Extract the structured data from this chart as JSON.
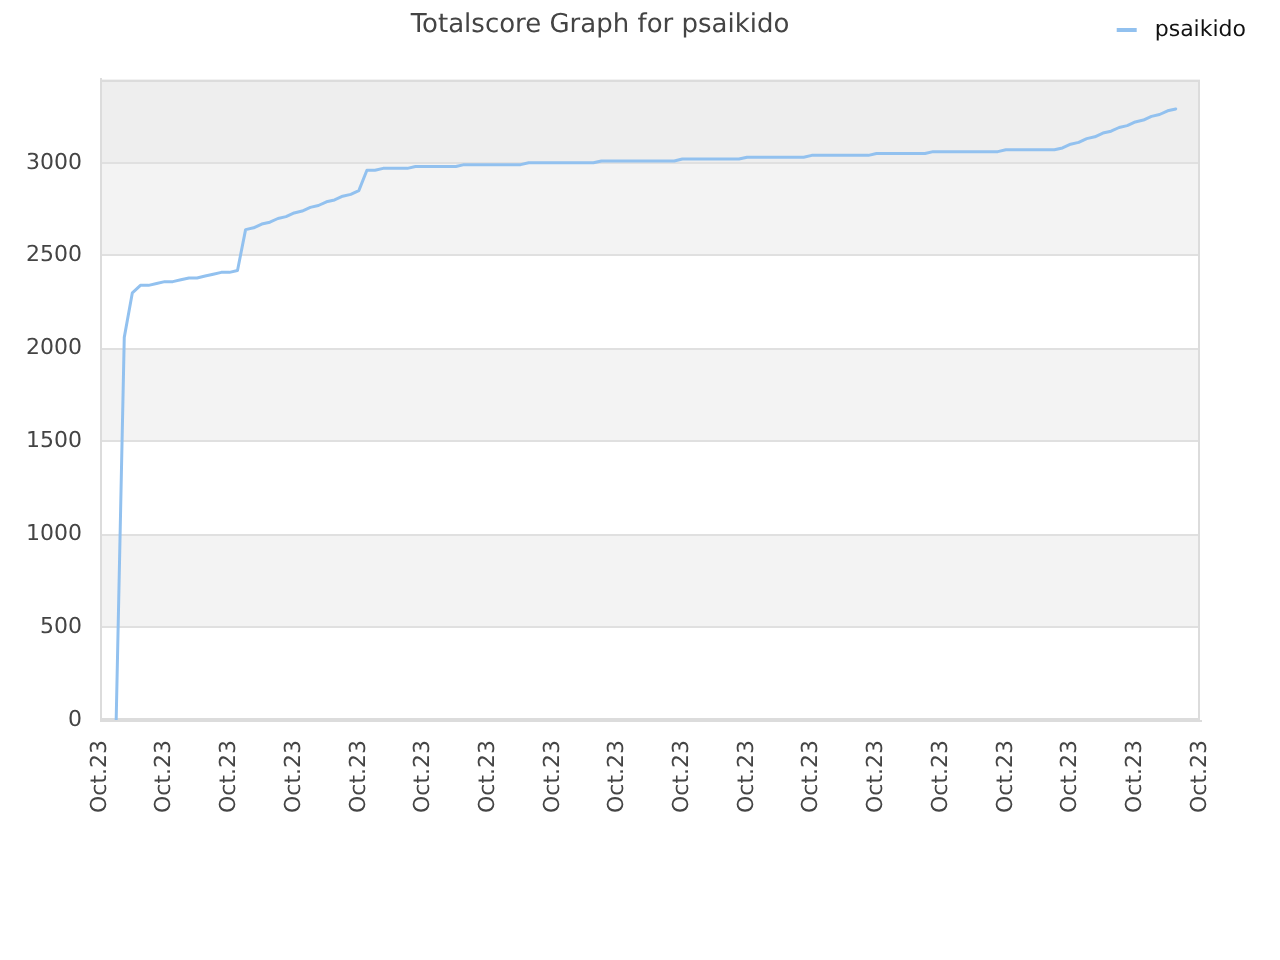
{
  "chart_data": {
    "type": "line",
    "title": "Totalscore Graph for psaikido",
    "categories": [
      "Oct.23",
      null,
      null,
      null,
      null,
      null,
      null,
      null,
      "Oct.23",
      null,
      null,
      null,
      null,
      null,
      null,
      null,
      "Oct.23",
      null,
      null,
      null,
      null,
      null,
      null,
      null,
      "Oct.23",
      null,
      null,
      null,
      null,
      null,
      null,
      null,
      "Oct.23",
      null,
      null,
      null,
      null,
      null,
      null,
      null,
      "Oct.23",
      null,
      null,
      null,
      null,
      null,
      null,
      null,
      "Oct.23",
      null,
      null,
      null,
      null,
      null,
      null,
      null,
      "Oct.23",
      null,
      null,
      null,
      null,
      null,
      null,
      null,
      "Oct.23",
      null,
      null,
      null,
      null,
      null,
      null,
      null,
      "Oct.23",
      null,
      null,
      null,
      null,
      null,
      null,
      null,
      "Oct.23",
      null,
      null,
      null,
      null,
      null,
      null,
      null,
      "Oct.23",
      null,
      null,
      null,
      null,
      null,
      null,
      null,
      "Oct.23",
      null,
      null,
      null,
      null,
      null,
      null,
      null,
      "Oct.23",
      null,
      null,
      null,
      null,
      null,
      null,
      null,
      "Oct.23",
      null,
      null,
      null,
      null,
      null,
      null,
      null,
      "Oct.23",
      null,
      null,
      null,
      null,
      null,
      null,
      null,
      "Oct.23",
      null,
      null,
      null,
      null,
      null,
      null,
      null,
      "Oct.23"
    ],
    "series": [
      {
        "name": "psaikido",
        "color": "#92c1ef",
        "values": [
          null,
          null,
          0,
          2060,
          2300,
          2340,
          2340,
          2350,
          2360,
          2360,
          2370,
          2380,
          2380,
          2390,
          2400,
          2410,
          2410,
          2420,
          2640,
          2650,
          2670,
          2680,
          2700,
          2710,
          2730,
          2740,
          2760,
          2770,
          2790,
          2800,
          2820,
          2830,
          2850,
          2960,
          2960,
          2970,
          2970,
          2970,
          2970,
          2980,
          2980,
          2980,
          2980,
          2980,
          2980,
          2990,
          2990,
          2990,
          2990,
          2990,
          2990,
          2990,
          2990,
          3000,
          3000,
          3000,
          3000,
          3000,
          3000,
          3000,
          3000,
          3000,
          3010,
          3010,
          3010,
          3010,
          3010,
          3010,
          3010,
          3010,
          3010,
          3010,
          3020,
          3020,
          3020,
          3020,
          3020,
          3020,
          3020,
          3020,
          3030,
          3030,
          3030,
          3030,
          3030,
          3030,
          3030,
          3030,
          3040,
          3040,
          3040,
          3040,
          3040,
          3040,
          3040,
          3040,
          3050,
          3050,
          3050,
          3050,
          3050,
          3050,
          3050,
          3060,
          3060,
          3060,
          3060,
          3060,
          3060,
          3060,
          3060,
          3060,
          3070,
          3070,
          3070,
          3070,
          3070,
          3070,
          3070,
          3080,
          3100,
          3110,
          3130,
          3140,
          3160,
          3170,
          3190,
          3200,
          3220,
          3230,
          3250,
          3260,
          3280,
          3290,
          null,
          null,
          null
        ]
      }
    ],
    "ylim": [
      0,
      3450
    ],
    "yticks": [
      0,
      500,
      1000,
      1500,
      2000,
      2500,
      3000
    ],
    "bands": [
      {
        "axis": "y",
        "from": 500,
        "to": 1000,
        "color": "#f3f3f3"
      },
      {
        "axis": "y",
        "from": 1500,
        "to": 2000,
        "color": "#f3f3f3"
      },
      {
        "axis": "y",
        "from": 2500,
        "to": 3000,
        "color": "#f3f3f3"
      },
      {
        "axis": "y",
        "from": 3000,
        "to": 3450,
        "color": "#eeeeee"
      }
    ],
    "grid": "y",
    "legend": "top right",
    "marker": "none",
    "line_style": "solid"
  }
}
